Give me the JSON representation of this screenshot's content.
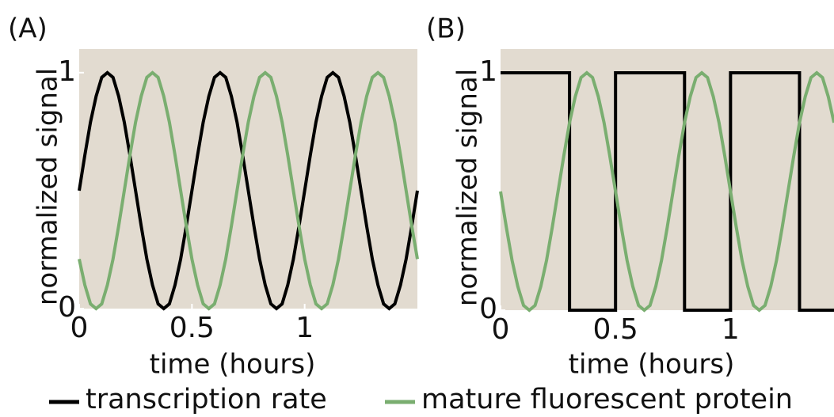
{
  "legend": [
    {
      "name": "transcription rate",
      "color": "#000000"
    },
    {
      "name": "mature fluorescent protein",
      "color": "#7aae70"
    }
  ],
  "chart_data": [
    {
      "type": "line",
      "label": "(A)",
      "x_label": "time (hours)",
      "y_label": "normalized signal",
      "background": "#e2dbd0",
      "xlim": [
        0,
        1.5
      ],
      "ylim": [
        0,
        1.1
      ],
      "xticks": [
        0,
        0.5,
        1
      ],
      "yticks": [
        0,
        1
      ],
      "x": [
        0,
        0.025,
        0.05,
        0.075,
        0.1,
        0.125,
        0.15,
        0.175,
        0.2,
        0.225,
        0.25,
        0.275,
        0.3,
        0.325,
        0.35,
        0.375,
        0.4,
        0.425,
        0.45,
        0.475,
        0.5,
        0.525,
        0.55,
        0.575,
        0.6,
        0.625,
        0.65,
        0.675,
        0.7,
        0.725,
        0.75,
        0.775,
        0.8,
        0.825,
        0.85,
        0.875,
        0.9,
        0.925,
        0.95,
        0.975,
        1,
        1.025,
        1.05,
        1.075,
        1.1,
        1.125,
        1.15,
        1.175,
        1.2,
        1.225,
        1.25,
        1.275,
        1.3,
        1.325,
        1.35,
        1.375,
        1.4,
        1.425,
        1.45,
        1.475,
        1.5
      ],
      "series": [
        {
          "color": "#000000",
          "values": [
            0.5,
            0.65,
            0.79,
            0.9,
            0.98,
            1,
            0.98,
            0.9,
            0.79,
            0.65,
            0.5,
            0.35,
            0.21,
            0.1,
            0.02,
            0,
            0.02,
            0.1,
            0.21,
            0.35,
            0.5,
            0.65,
            0.79,
            0.9,
            0.98,
            1,
            0.98,
            0.9,
            0.79,
            0.65,
            0.5,
            0.35,
            0.21,
            0.1,
            0.02,
            0,
            0.02,
            0.1,
            0.21,
            0.35,
            0.5,
            0.65,
            0.79,
            0.9,
            0.98,
            1,
            0.98,
            0.9,
            0.79,
            0.65,
            0.5,
            0.35,
            0.21,
            0.1,
            0.02,
            0,
            0.02,
            0.1,
            0.21,
            0.35,
            0.5
          ]
        },
        {
          "color": "#7aae70",
          "values": [
            0.21,
            0.1,
            0.02,
            0,
            0.02,
            0.1,
            0.21,
            0.35,
            0.5,
            0.65,
            0.79,
            0.9,
            0.98,
            1,
            0.98,
            0.9,
            0.79,
            0.65,
            0.5,
            0.35,
            0.21,
            0.1,
            0.02,
            0,
            0.02,
            0.1,
            0.21,
            0.35,
            0.5,
            0.65,
            0.79,
            0.9,
            0.98,
            1,
            0.98,
            0.9,
            0.79,
            0.65,
            0.5,
            0.35,
            0.21,
            0.1,
            0.02,
            0,
            0.02,
            0.1,
            0.21,
            0.35,
            0.5,
            0.65,
            0.79,
            0.9,
            0.98,
            1,
            0.98,
            0.9,
            0.79,
            0.65,
            0.5,
            0.35,
            0.21
          ]
        }
      ]
    },
    {
      "type": "line",
      "label": "(B)",
      "x_label": "time (hours)",
      "y_label": "normalized signal",
      "background": "#e2dbd0",
      "xlim": [
        0,
        1.45
      ],
      "ylim": [
        0,
        1.1
      ],
      "xticks": [
        0,
        0.5,
        1
      ],
      "yticks": [
        0,
        1
      ],
      "series": [
        {
          "color": "#000000",
          "x": [
            0,
            0.3,
            0.3,
            0.5,
            0.5,
            0.8,
            0.8,
            1,
            1,
            1.3,
            1.3,
            1.45
          ],
          "values": [
            1,
            1,
            0,
            0,
            1,
            1,
            0,
            0,
            1,
            1,
            0,
            0
          ]
        },
        {
          "color": "#7aae70",
          "x": [
            0,
            0.025,
            0.05,
            0.075,
            0.1,
            0.125,
            0.15,
            0.175,
            0.2,
            0.225,
            0.25,
            0.275,
            0.3,
            0.325,
            0.35,
            0.375,
            0.4,
            0.425,
            0.45,
            0.475,
            0.5,
            0.525,
            0.55,
            0.575,
            0.6,
            0.625,
            0.65,
            0.675,
            0.7,
            0.725,
            0.75,
            0.775,
            0.8,
            0.825,
            0.85,
            0.875,
            0.9,
            0.925,
            0.95,
            0.975,
            1,
            1.025,
            1.05,
            1.075,
            1.1,
            1.125,
            1.15,
            1.175,
            1.2,
            1.225,
            1.25,
            1.275,
            1.3,
            1.325,
            1.35,
            1.375,
            1.4,
            1.425,
            1.45
          ],
          "values": [
            0.5,
            0.35,
            0.21,
            0.1,
            0.02,
            0,
            0.02,
            0.1,
            0.21,
            0.35,
            0.5,
            0.65,
            0.79,
            0.9,
            0.98,
            1,
            0.98,
            0.9,
            0.79,
            0.65,
            0.5,
            0.35,
            0.21,
            0.1,
            0.02,
            0,
            0.02,
            0.1,
            0.21,
            0.35,
            0.5,
            0.65,
            0.79,
            0.9,
            0.98,
            1,
            0.98,
            0.9,
            0.79,
            0.65,
            0.5,
            0.35,
            0.21,
            0.1,
            0.02,
            0,
            0.02,
            0.1,
            0.21,
            0.35,
            0.5,
            0.65,
            0.79,
            0.9,
            0.98,
            1,
            0.98,
            0.9,
            0.79
          ]
        }
      ]
    }
  ]
}
